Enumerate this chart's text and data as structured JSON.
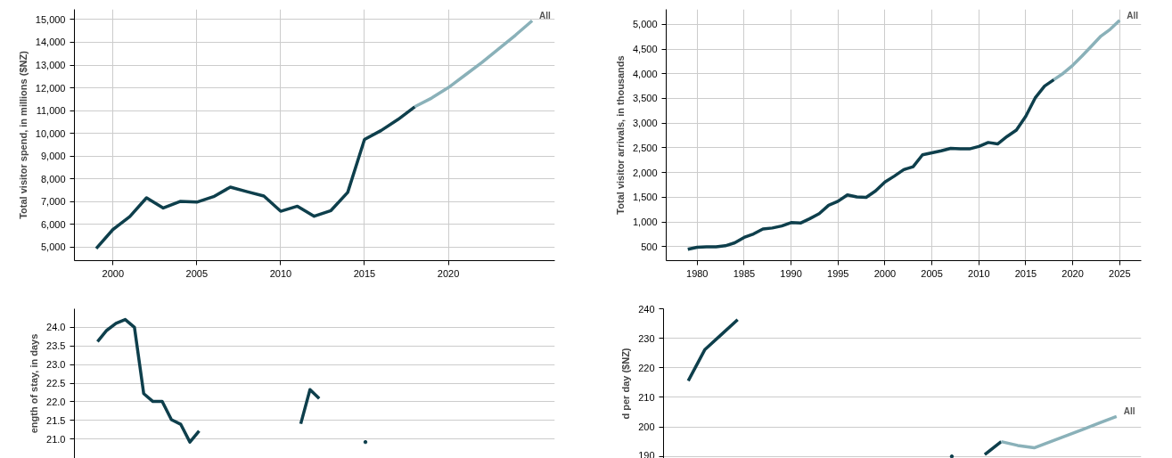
{
  "chart_data": [
    {
      "type": "line",
      "ylabel": "Total visitor spend, in millions ($NZ)",
      "xlim": [
        1997.7,
        2026.35
      ],
      "ylim": [
        4410,
        15447
      ],
      "xticks": [
        2000,
        2005,
        2010,
        2015,
        2020
      ],
      "yticks": [
        {
          "value": 5000,
          "label": "5,000"
        },
        {
          "value": 6000,
          "label": "6,000"
        },
        {
          "value": 7000,
          "label": "7,000"
        },
        {
          "value": 8000,
          "label": "8,000"
        },
        {
          "value": 9000,
          "label": "9,000"
        },
        {
          "value": 10000,
          "label": "10,000"
        },
        {
          "value": 11000,
          "label": "11,000"
        },
        {
          "value": 12000,
          "label": "12,000"
        },
        {
          "value": 13000,
          "label": "13,000"
        },
        {
          "value": 14000,
          "label": "14,000"
        },
        {
          "value": 15000,
          "label": "15,000"
        }
      ],
      "grid": true,
      "line_style": "solid",
      "marker": "none",
      "series": [
        {
          "color": "#0e3f4c",
          "x": [
            1999,
            2000,
            2001,
            2002,
            2003,
            2004,
            2005,
            2006,
            2007,
            2008,
            2009,
            2010,
            2011,
            2012,
            2013,
            2014,
            2015,
            2016,
            2017,
            2018
          ],
          "values": [
            4940,
            5780,
            6340,
            7170,
            6720,
            7010,
            6980,
            7220,
            7640,
            7440,
            7250,
            6580,
            6800,
            6360,
            6610,
            7410,
            9730,
            10130,
            10610,
            11170
          ]
        },
        {
          "color": "#8ab1b9",
          "x": [
            2018,
            2019,
            2020,
            2021,
            2022,
            2023,
            2024,
            2025
          ],
          "values": [
            11170,
            11550,
            12010,
            12560,
            13110,
            13710,
            14310,
            14950
          ]
        }
      ],
      "annotations": [
        "All"
      ]
    },
    {
      "type": "line",
      "ylabel": "Total visitor arrivals, in thousands",
      "xlim": [
        1976.7,
        2027.3
      ],
      "ylim": [
        220,
        5302
      ],
      "xticks": [
        1980,
        1985,
        1990,
        1995,
        2000,
        2005,
        2010,
        2015,
        2020,
        2025
      ],
      "yticks": [
        500,
        {
          "value": 1000,
          "label": "1,000"
        },
        {
          "value": 1500,
          "label": "1,500"
        },
        {
          "value": 2000,
          "label": "2,000"
        },
        {
          "value": 2500,
          "label": "2,500"
        },
        {
          "value": 3000,
          "label": "3,000"
        },
        {
          "value": 3500,
          "label": "3,500"
        },
        {
          "value": 4000,
          "label": "4,000"
        },
        {
          "value": 4500,
          "label": "4,500"
        },
        {
          "value": 5000,
          "label": "5,000"
        }
      ],
      "grid": true,
      "line_style": "solid",
      "marker": "none",
      "series": [
        {
          "color": "#0e3f4c",
          "x": [
            1979,
            1980,
            1981,
            1982,
            1983,
            1984,
            1985,
            1986,
            1987,
            1988,
            1989,
            1990,
            1991,
            1992,
            1993,
            1994,
            1995,
            1996,
            1997,
            1998,
            1999,
            2000,
            2001,
            2002,
            2003,
            2004,
            2005,
            2006,
            2007,
            2008,
            2009,
            2010,
            2011,
            2012,
            2013,
            2014,
            2015,
            2016,
            2017,
            2018
          ],
          "values": [
            450,
            490,
            500,
            500,
            520,
            580,
            690,
            760,
            860,
            880,
            920,
            990,
            980,
            1070,
            1170,
            1340,
            1420,
            1550,
            1510,
            1500,
            1630,
            1810,
            1930,
            2060,
            2120,
            2360,
            2400,
            2440,
            2490,
            2480,
            2480,
            2530,
            2610,
            2580,
            2730,
            2860,
            3140,
            3510,
            3750,
            3880
          ]
        },
        {
          "color": "#8ab1b9",
          "x": [
            2018,
            2019,
            2020,
            2021,
            2022,
            2023,
            2024,
            2025
          ],
          "values": [
            3880,
            4010,
            4170,
            4360,
            4560,
            4760,
            4900,
            5080
          ]
        }
      ],
      "annotations": [
        "All"
      ]
    },
    {
      "type": "line",
      "ylabel": "ength of stay, in days",
      "ylim": [
        20.48,
        24.5
      ],
      "yticks": [
        {
          "value": 21,
          "label": "21.0"
        },
        21.5,
        {
          "value": 22,
          "label": "22.0"
        },
        22.5,
        {
          "value": 23,
          "label": "23.0"
        },
        23.5,
        {
          "value": 24,
          "label": "24.0"
        }
      ],
      "grid": "y",
      "tick_labels": "y",
      "line_style": "solid",
      "marker": "none",
      "categories": [
        null,
        null,
        null,
        null,
        null,
        null,
        null,
        null,
        null,
        null,
        null,
        null,
        null,
        null,
        null,
        null,
        null,
        null,
        null,
        null,
        null,
        null,
        null,
        null,
        null,
        null,
        null,
        null,
        null,
        null,
        null,
        null,
        null,
        null,
        null,
        null,
        null,
        null,
        null,
        null,
        null,
        null,
        null,
        null,
        null,
        null,
        null,
        null,
        null,
        null,
        null,
        null
      ],
      "series": [
        {
          "color": "#0e3f4c",
          "values": [
            null,
            null,
            23.62,
            23.92,
            24.11,
            24.21,
            24.0,
            22.22,
            22.01,
            22.01,
            21.52,
            21.4,
            20.92,
            21.22,
            null,
            null,
            null,
            null,
            null,
            null,
            null,
            null,
            null,
            null,
            21.41,
            22.33,
            22.09,
            null,
            null,
            null,
            null,
            20.92,
            null,
            null,
            null,
            null,
            null,
            null,
            null,
            null,
            null,
            null,
            null,
            null,
            null,
            null,
            null,
            null,
            null,
            null,
            null,
            null
          ]
        }
      ]
    },
    {
      "type": "line",
      "ylabel": "d per day ($NZ)",
      "ylim": [
        189.3,
        240
      ],
      "yticks": [
        190,
        200,
        210,
        220,
        230,
        240
      ],
      "grid": "y",
      "tick_labels": "y",
      "line_style": "solid",
      "marker": "none",
      "categories": [
        null,
        null,
        null,
        null,
        null,
        null,
        null,
        null,
        null,
        null,
        null,
        null,
        null,
        null,
        null,
        null,
        null,
        null,
        null,
        null,
        null,
        null,
        null,
        null,
        null,
        null,
        null,
        null,
        null
      ],
      "series": [
        {
          "color": "#0e3f4c",
          "values": [
            null,
            215.6,
            226.1,
            231.2,
            236.3,
            null,
            null,
            null,
            null,
            null,
            null,
            null,
            null,
            null,
            null,
            null,
            null,
            190.0,
            null,
            190.6,
            195.0,
            null,
            null,
            null,
            null,
            null,
            null,
            null,
            null
          ]
        },
        {
          "color": "#8ab1b9",
          "values": [
            null,
            null,
            null,
            null,
            null,
            null,
            null,
            null,
            null,
            null,
            null,
            null,
            null,
            null,
            null,
            null,
            null,
            null,
            null,
            null,
            195.0,
            193.7,
            192.9,
            195.0,
            197.1,
            199.2,
            201.4,
            203.5,
            null
          ]
        }
      ],
      "annotations": [
        "All"
      ]
    }
  ]
}
